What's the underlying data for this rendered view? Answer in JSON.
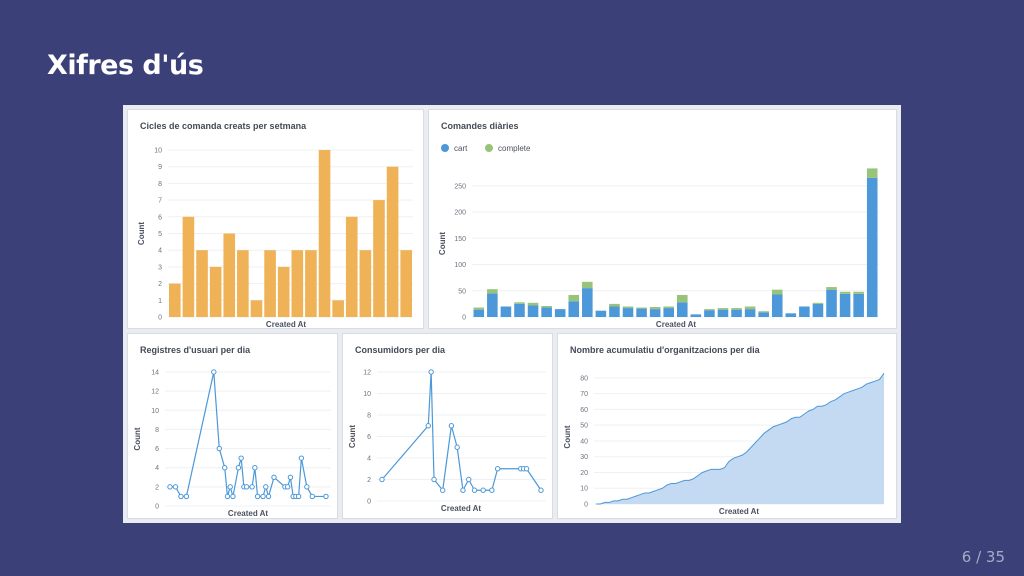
{
  "slide": {
    "title": "Xifres d'ús",
    "page_current": "6",
    "page_total": "35"
  },
  "chart_data": [
    {
      "id": "weekly",
      "type": "bar",
      "title": "Cicles de comanda creats per setmana",
      "xlabel": "Created At",
      "ylabel": "Count",
      "ylim": [
        0,
        10
      ],
      "yticks": [
        0,
        1,
        2,
        3,
        4,
        5,
        6,
        7,
        8,
        9,
        10
      ],
      "color": "#efb256",
      "values": [
        2,
        6,
        4,
        3,
        5,
        4,
        1,
        4,
        3,
        4,
        4,
        10,
        1,
        6,
        4,
        7,
        9,
        4
      ]
    },
    {
      "id": "daily",
      "type": "bar",
      "stacked": true,
      "title": "Comandes diàries",
      "xlabel": "Created At",
      "ylabel": "Count",
      "ylim": [
        0,
        280
      ],
      "yticks": [
        0,
        50,
        100,
        150,
        200,
        250
      ],
      "legend_position": "top-left",
      "series": [
        {
          "name": "cart",
          "color": "#4c98d8",
          "values": [
            14,
            45,
            20,
            25,
            22,
            18,
            15,
            30,
            55,
            12,
            20,
            17,
            16,
            15,
            17,
            28,
            5,
            13,
            14,
            14,
            15,
            9,
            43,
            7,
            20,
            25,
            52,
            44,
            44,
            265
          ]
        },
        {
          "name": "complete",
          "color": "#98c37a",
          "values": [
            4,
            8,
            0,
            3,
            5,
            3,
            0,
            12,
            12,
            0,
            5,
            3,
            2,
            4,
            3,
            14,
            0,
            2,
            3,
            3,
            5,
            2,
            9,
            0,
            0,
            2,
            5,
            4,
            4,
            18
          ]
        }
      ]
    },
    {
      "id": "users",
      "type": "line",
      "title": "Registres d'usuari per dia",
      "xlabel": "Created At",
      "ylabel": "Count",
      "ylim": [
        0,
        14
      ],
      "yticks": [
        0,
        2,
        4,
        6,
        8,
        10,
        12,
        14
      ],
      "color": "#4c98d8",
      "points": [
        [
          0,
          2
        ],
        [
          2,
          2
        ],
        [
          4,
          1
        ],
        [
          6,
          1
        ],
        [
          16,
          14
        ],
        [
          18,
          6
        ],
        [
          20,
          4
        ],
        [
          21,
          1
        ],
        [
          22,
          2
        ],
        [
          23,
          1
        ],
        [
          25,
          4
        ],
        [
          26,
          5
        ],
        [
          27,
          2
        ],
        [
          28,
          2
        ],
        [
          30,
          2
        ],
        [
          31,
          4
        ],
        [
          32,
          1
        ],
        [
          34,
          1
        ],
        [
          35,
          2
        ],
        [
          36,
          1
        ],
        [
          38,
          3
        ],
        [
          42,
          2
        ],
        [
          43,
          2
        ],
        [
          44,
          3
        ],
        [
          45,
          1
        ],
        [
          46,
          1
        ],
        [
          47,
          1
        ],
        [
          48,
          5
        ],
        [
          50,
          2
        ],
        [
          52,
          1
        ],
        [
          57,
          1
        ]
      ]
    },
    {
      "id": "consumers",
      "type": "line",
      "title": "Consumidors per dia",
      "xlabel": "Created At",
      "ylabel": "Count",
      "ylim": [
        0,
        12
      ],
      "yticks": [
        0,
        2,
        4,
        6,
        8,
        10,
        12
      ],
      "color": "#4c98d8",
      "points": [
        [
          0,
          2
        ],
        [
          16,
          7
        ],
        [
          17,
          12
        ],
        [
          18,
          2
        ],
        [
          21,
          1
        ],
        [
          24,
          7
        ],
        [
          26,
          5
        ],
        [
          28,
          1
        ],
        [
          30,
          2
        ],
        [
          32,
          1
        ],
        [
          35,
          1
        ],
        [
          38,
          1
        ],
        [
          40,
          3
        ],
        [
          48,
          3
        ],
        [
          49,
          3
        ],
        [
          50,
          3
        ],
        [
          55,
          1
        ]
      ]
    },
    {
      "id": "orgs",
      "type": "area",
      "title": "Nombre acumulatiu d'organitzacions per dia",
      "xlabel": "Created At",
      "ylabel": "Count",
      "ylim": [
        0,
        85
      ],
      "yticks": [
        0,
        10,
        20,
        30,
        40,
        50,
        60,
        70,
        80
      ],
      "color": "#4c98d8",
      "fill": "#c4daf3",
      "values": [
        0,
        0,
        1,
        1,
        2,
        2,
        3,
        3,
        4,
        5,
        6,
        7,
        7,
        8,
        9,
        10,
        12,
        13,
        13,
        14,
        15,
        15,
        16,
        18,
        20,
        21,
        22,
        22,
        22,
        23,
        27,
        29,
        30,
        31,
        33,
        36,
        39,
        42,
        45,
        47,
        49,
        50,
        51,
        52,
        54,
        55,
        55,
        57,
        59,
        60,
        62,
        62,
        63,
        65,
        66,
        68,
        70,
        71,
        72,
        73,
        74,
        76,
        77,
        78,
        79,
        83
      ]
    }
  ]
}
